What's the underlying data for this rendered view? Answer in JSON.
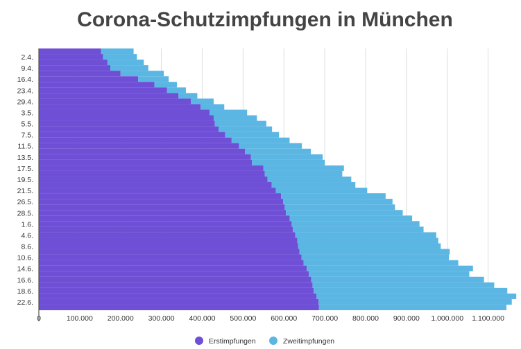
{
  "chart_data": {
    "type": "bar",
    "orientation": "horizontal",
    "stacked": true,
    "title": "Corona-Schutzimpfungen in München",
    "categories": [
      "1.4.",
      "2.4.",
      "6.4.",
      "9.4.",
      "12.4.",
      "16.4.",
      "20.4.",
      "23.4.",
      "27.4.",
      "29.4.",
      "30.4.",
      "3.5.",
      "4.5.",
      "5.5.",
      "6.5.",
      "7.5.",
      "10.5.",
      "11.5.",
      "12.5.",
      "13.5.",
      "14.5.",
      "17.5.",
      "18.5.",
      "19.5.",
      "20.5.",
      "21.5.",
      "25.5.",
      "26.5.",
      "27.5.",
      "28.5.",
      "31.5.",
      "1.6.",
      "2.6.",
      "4.6.",
      "7.6.",
      "8.6.",
      "9.6.",
      "10.6.",
      "11.6.",
      "14.6.",
      "15.6.",
      "16.6.",
      "17.6.",
      "18.6.",
      "21.6.",
      "22.6.",
      "23.6."
    ],
    "visible_category_labels": [
      "2.4.",
      "9.4.",
      "16.4.",
      "23.4.",
      "29.4.",
      "3.5.",
      "5.5.",
      "7.5.",
      "11.5.",
      "13.5.",
      "17.5.",
      "19.5.",
      "21.5.",
      "26.5.",
      "28.5.",
      "1.6.",
      "4.6.",
      "8.6.",
      "10.6.",
      "14.6.",
      "16.6.",
      "18.6.",
      "22.6."
    ],
    "series": [
      {
        "name": "Erstimpfungen",
        "color": "#6e4fd6",
        "values": [
          152000,
          157000,
          168000,
          175000,
          200000,
          243000,
          283000,
          314000,
          342000,
          372000,
          396000,
          418000,
          428000,
          431000,
          440000,
          456000,
          472000,
          490000,
          505000,
          519000,
          522000,
          550000,
          553000,
          560000,
          570000,
          580000,
          593000,
          598000,
          602000,
          605000,
          614000,
          619000,
          622000,
          628000,
          633000,
          635000,
          638000,
          643000,
          648000,
          656000,
          661000,
          667000,
          670000,
          673000,
          680000,
          685000,
          686000
        ]
      },
      {
        "name": "Zweitimpfungen",
        "color": "#5bb6e3",
        "values": [
          80000,
          83000,
          89000,
          93000,
          106000,
          75000,
          55000,
          46000,
          46000,
          56000,
          58000,
          92000,
          106000,
          126000,
          131000,
          132000,
          142000,
          154000,
          161000,
          176000,
          178000,
          197000,
          190000,
          205000,
          205000,
          224000,
          256000,
          268000,
          270000,
          286000,
          300000,
          313000,
          320000,
          345000,
          345000,
          349000,
          368000,
          361000,
          379000,
          407000,
          393000,
          423000,
          445000,
          474000,
          489000,
          473000,
          459000
        ]
      }
    ],
    "xlim": [
      0,
      1150000
    ],
    "x_ticks": [
      0,
      100000,
      200000,
      300000,
      400000,
      500000,
      600000,
      700000,
      800000,
      900000,
      1000000,
      1100000
    ],
    "x_tick_labels": [
      "0",
      "100.000",
      "200.000",
      "300.000",
      "400.000",
      "500.000",
      "600.000",
      "700.000",
      "800.000",
      "900.000",
      "1.000.000",
      "1.100.000"
    ],
    "grid": true,
    "legend_position": "bottom-center"
  }
}
